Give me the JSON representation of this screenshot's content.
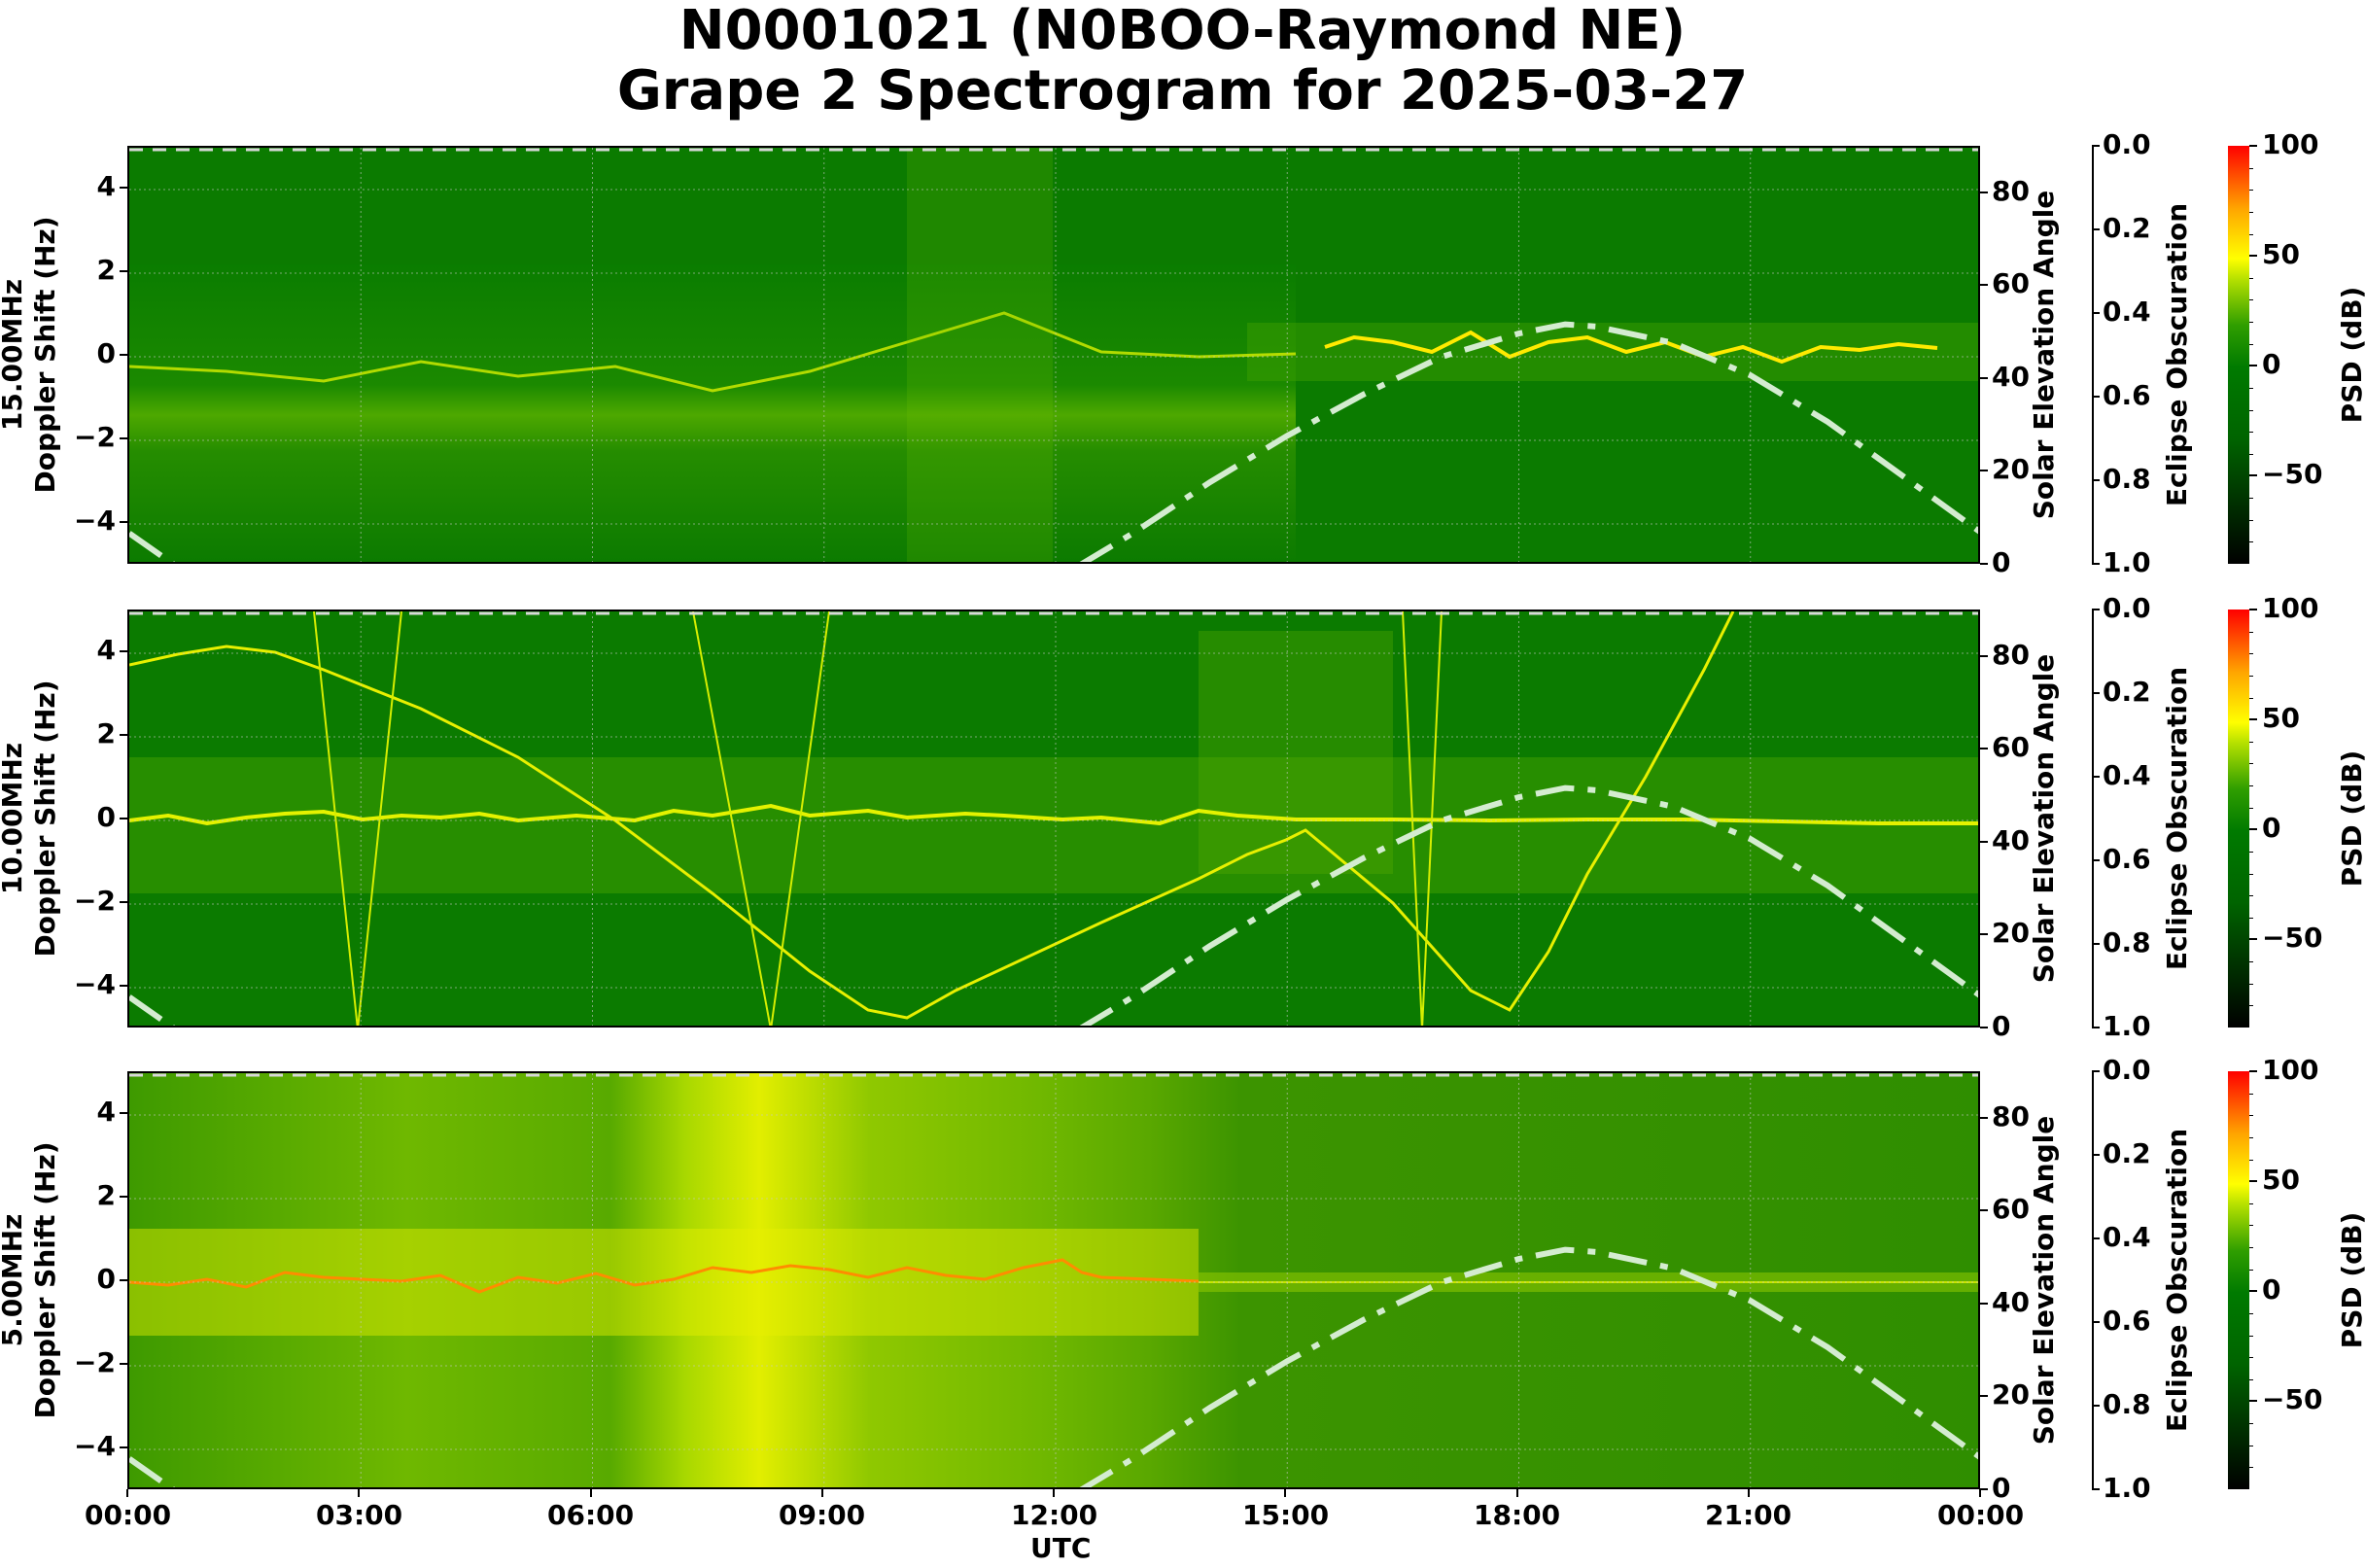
{
  "title": {
    "line1": "N0001021 (N0BOO-Raymond NE)",
    "line2": "Grape 2 Spectrogram for 2025-03-27"
  },
  "x_axis": {
    "label": "UTC",
    "ticks": [
      "00:00",
      "03:00",
      "06:00",
      "09:00",
      "12:00",
      "15:00",
      "18:00",
      "21:00",
      "00:00"
    ]
  },
  "y_axis": {
    "ticks": [
      "4",
      "2",
      "0",
      "−2",
      "−4"
    ]
  },
  "solar_axis": {
    "label": "Solar Elevation Angle",
    "ticks": [
      "80",
      "60",
      "40",
      "20",
      "0"
    ]
  },
  "eclipse_axis": {
    "label": "Eclipse Obscuration",
    "ticks": [
      "0.0",
      "0.2",
      "0.4",
      "0.6",
      "0.8",
      "1.0"
    ]
  },
  "colorbar": {
    "label": "PSD (dB)",
    "ticks": [
      "100",
      "50",
      "0",
      "−50"
    ]
  },
  "panels": [
    {
      "freq_label": "15.00MHz",
      "ylabel": "Doppler Shift (Hz)"
    },
    {
      "freq_label": "10.00MHz",
      "ylabel": "Doppler Shift (Hz)"
    },
    {
      "freq_label": "5.00MHz",
      "ylabel": "Doppler Shift (Hz)"
    }
  ],
  "chart_data": {
    "type": "heatmap",
    "title": "N0001021 (N0BOO-Raymond NE) Grape 2 Spectrogram for 2025-03-27",
    "xlabel": "UTC",
    "x_ticks": [
      "00:00",
      "03:00",
      "06:00",
      "09:00",
      "12:00",
      "15:00",
      "18:00",
      "21:00",
      "00:00"
    ],
    "xlim_hours": [
      0,
      24
    ],
    "subplots": [
      {
        "frequency": "15.00MHz",
        "ylabel": "Doppler Shift (Hz)",
        "ylim": [
          -5,
          5
        ],
        "y_ticks": [
          -4,
          -2,
          0,
          2,
          4
        ],
        "notes": "Diffuse signal around 0 Hz with spread 00:00-15:00; strong yellow trace near 0 Hz from ~15:30 to ~22:00"
      },
      {
        "frequency": "10.00MHz",
        "ylabel": "Doppler Shift (Hz)",
        "ylim": [
          -5,
          5
        ],
        "y_ticks": [
          -4,
          -2,
          0,
          2,
          4
        ],
        "notes": "Main trace near 0 Hz; additional sweeping traces (e.g. from +3.7 Hz at 00:00 peaking ~+4.2 at 01:00 down to -4.9 at ~09:00, rising to -0.2 at ~14:00, down to -5 at ~16:45, up to +5 at ~19:00)"
      },
      {
        "frequency": "5.00MHz",
        "ylabel": "Doppler Shift (Hz)",
        "ylim": [
          -5,
          5
        ],
        "y_ticks": [
          -4,
          -2,
          0,
          2,
          4
        ],
        "notes": "Broad high-PSD (yellow/orange) band 00:00-13:00 with orange trace near 0 Hz; quieter green after 13:00 with thin line at 0 Hz"
      }
    ],
    "solar_elevation": {
      "ylabel": "Solar Elevation Angle",
      "ylim": [
        0,
        90
      ],
      "style": "dash-dot, light green/white",
      "x_hours": [
        0,
        0.6,
        12.3,
        13,
        14,
        15,
        16,
        17,
        18,
        18.6,
        19,
        20,
        21,
        22,
        23,
        24
      ],
      "values": [
        7,
        0,
        0,
        7,
        18,
        28,
        37,
        45,
        50,
        52,
        51.5,
        48,
        41,
        31,
        19,
        7
      ]
    },
    "eclipse_obscuration": {
      "ylabel": "Eclipse Obscuration",
      "ylim": [
        1.0,
        0.0
      ],
      "values_note": "0 throughout (dashed line at top)"
    },
    "colorbar": {
      "label": "PSD (dB)",
      "range": [
        -90,
        100
      ],
      "ticks": [
        -50,
        0,
        50,
        100
      ],
      "colormap": "black-green-yellow-red"
    }
  }
}
